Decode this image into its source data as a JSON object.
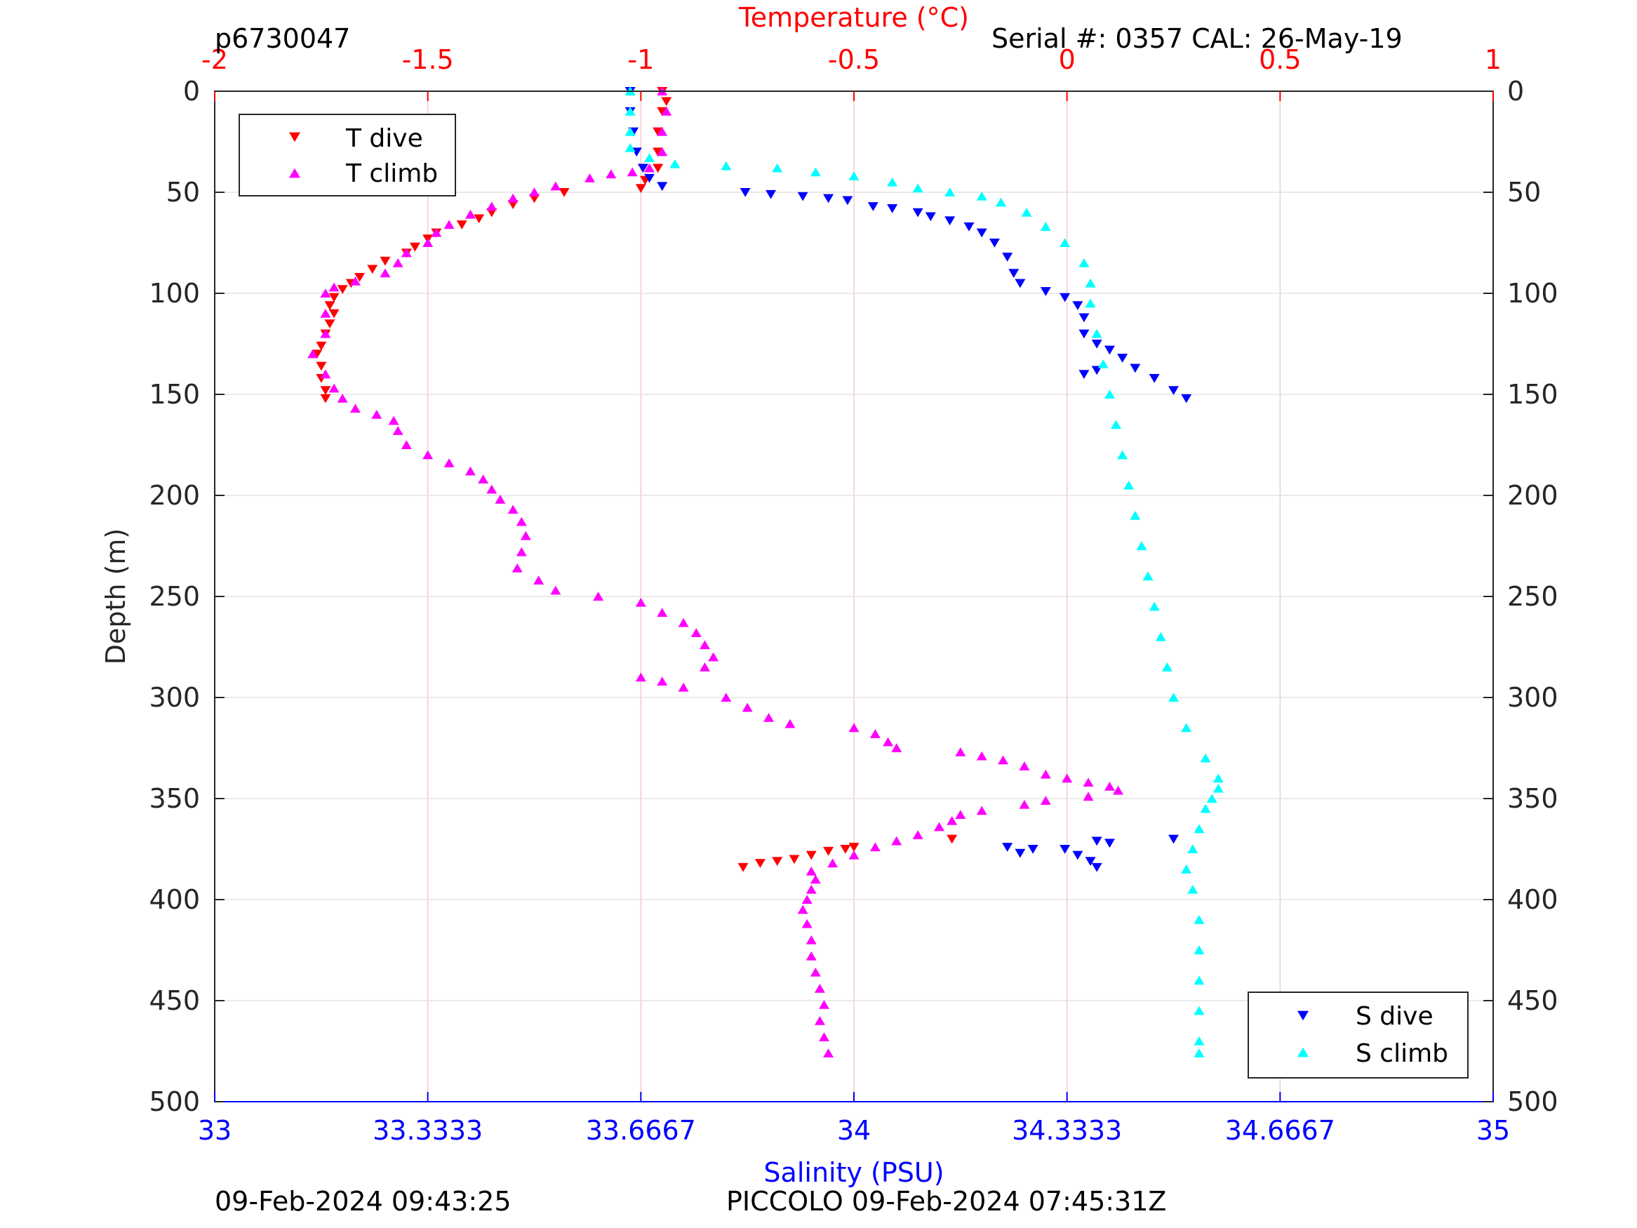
{
  "chart_data": {
    "type": "scatter",
    "title": "",
    "header_left": "p6730047",
    "header_right": "Serial #: 0357  CAL: 26-May-19",
    "footer_left": "09-Feb-2024 09:43:25",
    "footer_right": "PICCOLO 09-Feb-2024 07:45:31Z",
    "ylabel": "Depth (m)",
    "xlabel_top": "Temperature (°C)",
    "xlabel_bottom": "Salinity (PSU)",
    "ylim": [
      0,
      500
    ],
    "y_reversed": true,
    "temperature_axis": {
      "range": [
        -2,
        1
      ],
      "ticks": [
        "-2",
        "-1.5",
        "-1",
        "-0.5",
        "0",
        "0.5",
        "1"
      ]
    },
    "salinity_axis": {
      "range": [
        33,
        35
      ],
      "ticks": [
        "33",
        "33.3333",
        "33.6667",
        "34",
        "34.3333",
        "34.6667",
        "35"
      ]
    },
    "y_ticks": [
      "0",
      "50",
      "100",
      "150",
      "200",
      "250",
      "300",
      "350",
      "400",
      "450",
      "500"
    ],
    "grid": true,
    "colors": {
      "t_dive": "#ff0000",
      "t_climb": "#ff00ff",
      "s_dive": "#0000ff",
      "s_climb": "#00ffff",
      "temp_axis": "#ff0000",
      "sal_axis": "#0000ff"
    },
    "legend_temperature": {
      "placement": "top-left",
      "entries": [
        "T dive",
        "T climb"
      ]
    },
    "legend_salinity": {
      "placement": "bottom-right",
      "entries": [
        "S dive",
        "S climb"
      ]
    },
    "series": [
      {
        "name": "T dive",
        "axis": "temperature",
        "marker": "triangle-down",
        "points": [
          [
            -0.95,
            0
          ],
          [
            -0.94,
            5
          ],
          [
            -0.95,
            10
          ],
          [
            -0.96,
            20
          ],
          [
            -0.96,
            30
          ],
          [
            -0.96,
            38
          ],
          [
            -0.99,
            44
          ],
          [
            -1.0,
            48
          ],
          [
            -1.18,
            50
          ],
          [
            -1.25,
            53
          ],
          [
            -1.3,
            56
          ],
          [
            -1.35,
            60
          ],
          [
            -1.38,
            63
          ],
          [
            -1.42,
            66
          ],
          [
            -1.48,
            70
          ],
          [
            -1.5,
            73
          ],
          [
            -1.53,
            77
          ],
          [
            -1.55,
            80
          ],
          [
            -1.6,
            84
          ],
          [
            -1.63,
            88
          ],
          [
            -1.66,
            92
          ],
          [
            -1.68,
            95
          ],
          [
            -1.7,
            98
          ],
          [
            -1.72,
            102
          ],
          [
            -1.73,
            106
          ],
          [
            -1.72,
            110
          ],
          [
            -1.73,
            115
          ],
          [
            -1.74,
            120
          ],
          [
            -1.75,
            126
          ],
          [
            -1.76,
            130
          ],
          [
            -1.75,
            136
          ],
          [
            -1.75,
            142
          ],
          [
            -1.74,
            148
          ],
          [
            -1.74,
            152
          ],
          [
            -0.76,
            384
          ],
          [
            -0.72,
            382
          ],
          [
            -0.68,
            381
          ],
          [
            -0.64,
            380
          ],
          [
            -0.6,
            378
          ],
          [
            -0.56,
            376
          ],
          [
            -0.52,
            375
          ],
          [
            -0.5,
            374
          ],
          [
            -0.27,
            370
          ]
        ]
      },
      {
        "name": "T climb",
        "axis": "temperature",
        "marker": "triangle-up",
        "points": [
          [
            -0.95,
            0
          ],
          [
            -0.94,
            10
          ],
          [
            -0.95,
            20
          ],
          [
            -0.95,
            30
          ],
          [
            -0.98,
            38
          ],
          [
            -1.02,
            40
          ],
          [
            -1.07,
            41
          ],
          [
            -1.12,
            43
          ],
          [
            -1.2,
            47
          ],
          [
            -1.25,
            50
          ],
          [
            -1.3,
            53
          ],
          [
            -1.35,
            57
          ],
          [
            -1.4,
            61
          ],
          [
            -1.45,
            66
          ],
          [
            -1.48,
            70
          ],
          [
            -1.5,
            75
          ],
          [
            -1.55,
            80
          ],
          [
            -1.57,
            85
          ],
          [
            -1.6,
            90
          ],
          [
            -1.67,
            94
          ],
          [
            -1.72,
            97
          ],
          [
            -1.74,
            100
          ],
          [
            -1.74,
            110
          ],
          [
            -1.74,
            120
          ],
          [
            -1.77,
            130
          ],
          [
            -1.74,
            140
          ],
          [
            -1.72,
            147
          ],
          [
            -1.7,
            152
          ],
          [
            -1.67,
            157
          ],
          [
            -1.62,
            160
          ],
          [
            -1.58,
            163
          ],
          [
            -1.57,
            168
          ],
          [
            -1.55,
            175
          ],
          [
            -1.5,
            180
          ],
          [
            -1.45,
            184
          ],
          [
            -1.4,
            188
          ],
          [
            -1.37,
            192
          ],
          [
            -1.35,
            197
          ],
          [
            -1.33,
            202
          ],
          [
            -1.3,
            207
          ],
          [
            -1.28,
            213
          ],
          [
            -1.27,
            220
          ],
          [
            -1.28,
            228
          ],
          [
            -1.29,
            236
          ],
          [
            -1.24,
            242
          ],
          [
            -1.2,
            247
          ],
          [
            -1.1,
            250
          ],
          [
            -1.0,
            253
          ],
          [
            -0.95,
            258
          ],
          [
            -0.9,
            263
          ],
          [
            -0.87,
            268
          ],
          [
            -0.85,
            274
          ],
          [
            -0.83,
            280
          ],
          [
            -0.85,
            285
          ],
          [
            -1.0,
            290
          ],
          [
            -0.95,
            292
          ],
          [
            -0.9,
            295
          ],
          [
            -0.8,
            300
          ],
          [
            -0.75,
            305
          ],
          [
            -0.7,
            310
          ],
          [
            -0.65,
            313
          ],
          [
            -0.5,
            315
          ],
          [
            -0.45,
            318
          ],
          [
            -0.42,
            322
          ],
          [
            -0.4,
            325
          ],
          [
            -0.25,
            327
          ],
          [
            -0.2,
            329
          ],
          [
            -0.15,
            331
          ],
          [
            -0.1,
            334
          ],
          [
            -0.05,
            338
          ],
          [
            0.0,
            340
          ],
          [
            0.05,
            342
          ],
          [
            0.1,
            344
          ],
          [
            0.12,
            346
          ],
          [
            0.05,
            349
          ],
          [
            -0.05,
            351
          ],
          [
            -0.1,
            353
          ],
          [
            -0.2,
            356
          ],
          [
            -0.25,
            358
          ],
          [
            -0.27,
            361
          ],
          [
            -0.3,
            364
          ],
          [
            -0.35,
            368
          ],
          [
            -0.4,
            371
          ],
          [
            -0.45,
            374
          ],
          [
            -0.5,
            378
          ],
          [
            -0.55,
            382
          ],
          [
            -0.6,
            386
          ],
          [
            -0.59,
            390
          ],
          [
            -0.6,
            395
          ],
          [
            -0.61,
            400
          ],
          [
            -0.62,
            405
          ],
          [
            -0.61,
            412
          ],
          [
            -0.6,
            420
          ],
          [
            -0.6,
            428
          ],
          [
            -0.59,
            436
          ],
          [
            -0.58,
            444
          ],
          [
            -0.57,
            452
          ],
          [
            -0.58,
            460
          ],
          [
            -0.57,
            468
          ],
          [
            -0.56,
            476
          ]
        ]
      },
      {
        "name": "S dive",
        "axis": "salinity",
        "marker": "triangle-down",
        "points": [
          [
            33.65,
            0
          ],
          [
            33.65,
            10
          ],
          [
            33.655,
            20
          ],
          [
            33.66,
            30
          ],
          [
            33.67,
            38
          ],
          [
            33.68,
            43
          ],
          [
            33.7,
            47
          ],
          [
            33.83,
            50
          ],
          [
            33.87,
            51
          ],
          [
            33.92,
            52
          ],
          [
            33.96,
            53
          ],
          [
            33.99,
            54
          ],
          [
            34.03,
            57
          ],
          [
            34.06,
            58
          ],
          [
            34.1,
            60
          ],
          [
            34.12,
            62
          ],
          [
            34.15,
            64
          ],
          [
            34.18,
            67
          ],
          [
            34.2,
            70
          ],
          [
            34.22,
            75
          ],
          [
            34.24,
            82
          ],
          [
            34.25,
            90
          ],
          [
            34.26,
            95
          ],
          [
            34.3,
            99
          ],
          [
            34.33,
            102
          ],
          [
            34.35,
            106
          ],
          [
            34.36,
            112
          ],
          [
            34.36,
            120
          ],
          [
            34.38,
            125
          ],
          [
            34.4,
            128
          ],
          [
            34.42,
            132
          ],
          [
            34.44,
            137
          ],
          [
            34.47,
            142
          ],
          [
            34.5,
            148
          ],
          [
            34.52,
            152
          ],
          [
            34.36,
            140
          ],
          [
            34.38,
            138
          ],
          [
            34.24,
            374
          ],
          [
            34.26,
            377
          ],
          [
            34.28,
            375
          ],
          [
            34.33,
            375
          ],
          [
            34.35,
            378
          ],
          [
            34.37,
            381
          ],
          [
            34.38,
            384
          ],
          [
            34.38,
            371
          ],
          [
            34.4,
            372
          ],
          [
            34.5,
            370
          ]
        ]
      },
      {
        "name": "S climb",
        "axis": "salinity",
        "marker": "triangle-up",
        "points": [
          [
            33.65,
            0
          ],
          [
            33.65,
            10
          ],
          [
            33.65,
            20
          ],
          [
            33.65,
            28
          ],
          [
            33.68,
            33
          ],
          [
            33.72,
            36
          ],
          [
            33.8,
            37
          ],
          [
            33.88,
            38
          ],
          [
            33.94,
            40
          ],
          [
            34.0,
            42
          ],
          [
            34.06,
            45
          ],
          [
            34.1,
            48
          ],
          [
            34.15,
            50
          ],
          [
            34.2,
            52
          ],
          [
            34.23,
            55
          ],
          [
            34.27,
            60
          ],
          [
            34.3,
            67
          ],
          [
            34.33,
            75
          ],
          [
            34.36,
            85
          ],
          [
            34.37,
            95
          ],
          [
            34.37,
            105
          ],
          [
            34.38,
            120
          ],
          [
            34.39,
            135
          ],
          [
            34.4,
            150
          ],
          [
            34.41,
            165
          ],
          [
            34.42,
            180
          ],
          [
            34.43,
            195
          ],
          [
            34.44,
            210
          ],
          [
            34.45,
            225
          ],
          [
            34.46,
            240
          ],
          [
            34.47,
            255
          ],
          [
            34.48,
            270
          ],
          [
            34.49,
            285
          ],
          [
            34.5,
            300
          ],
          [
            34.52,
            315
          ],
          [
            34.55,
            330
          ],
          [
            34.57,
            340
          ],
          [
            34.57,
            345
          ],
          [
            34.56,
            350
          ],
          [
            34.55,
            355
          ],
          [
            34.54,
            365
          ],
          [
            34.53,
            375
          ],
          [
            34.52,
            385
          ],
          [
            34.53,
            395
          ],
          [
            34.54,
            410
          ],
          [
            34.54,
            425
          ],
          [
            34.54,
            440
          ],
          [
            34.54,
            455
          ],
          [
            34.54,
            470
          ],
          [
            34.54,
            476
          ]
        ]
      }
    ]
  }
}
